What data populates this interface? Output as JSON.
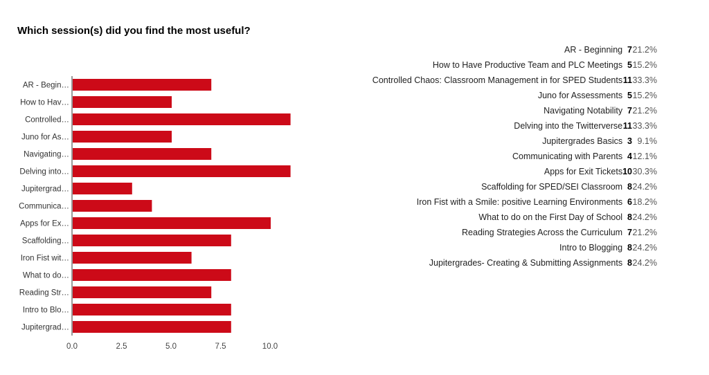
{
  "title": "Which session(s) did you find the most useful?",
  "colors": {
    "bar": "#cc0a18",
    "axis": "#333333",
    "text": "#222222"
  },
  "chart_data": {
    "type": "bar",
    "orientation": "horizontal",
    "title": "Which session(s) did you find the most useful?",
    "categories": [
      "AR - Begin…",
      "How to Hav…",
      "Controlled…",
      "Juno for As…",
      "Navigating…",
      "Delving into…",
      "Jupitergrad…",
      "Communica…",
      "Apps for Ex…",
      "Scaffolding…",
      "Iron Fist wit…",
      "What to do…",
      "Reading Str…",
      "Intro to Blo…",
      "Jupitergrad…"
    ],
    "values": [
      7,
      5,
      11,
      5,
      7,
      11,
      3,
      4,
      10,
      8,
      6,
      8,
      7,
      8,
      8
    ],
    "xlim": [
      0,
      12
    ],
    "x_ticks": [
      "0.0",
      "2.5",
      "5.0",
      "7.5",
      "10.0"
    ],
    "x_tick_values": [
      0,
      2.5,
      5,
      7.5,
      10
    ],
    "grid": false,
    "legend": "none"
  },
  "summary": [
    {
      "name": "AR - Beginning",
      "count": "7",
      "percent": "21.2%"
    },
    {
      "name": "How to Have Productive Team and PLC Meetings",
      "count": "5",
      "percent": "15.2%"
    },
    {
      "name": "Controlled Chaos:  Classroom Management in for SPED Students",
      "count": "11",
      "percent": "33.3%"
    },
    {
      "name": "Juno for Assessments",
      "count": "5",
      "percent": "15.2%"
    },
    {
      "name": "Navigating Notability",
      "count": "7",
      "percent": "21.2%"
    },
    {
      "name": "Delving into the Twitterverse",
      "count": "11",
      "percent": "33.3%"
    },
    {
      "name": "Jupitergrades Basics",
      "count": "3",
      "percent": "9.1%"
    },
    {
      "name": "Communicating with Parents",
      "count": "4",
      "percent": "12.1%"
    },
    {
      "name": "Apps for Exit Tickets",
      "count": "10",
      "percent": "30.3%"
    },
    {
      "name": "Scaffolding for SPED/SEI Classroom",
      "count": "8",
      "percent": "24.2%"
    },
    {
      "name": "Iron Fist with a Smile: positive Learning Environments",
      "count": "6",
      "percent": "18.2%"
    },
    {
      "name": "What to do on the First Day of School",
      "count": "8",
      "percent": "24.2%"
    },
    {
      "name": "Reading Strategies Across the Curriculum",
      "count": "7",
      "percent": "21.2%"
    },
    {
      "name": "Intro to Blogging",
      "count": "8",
      "percent": "24.2%"
    },
    {
      "name": "Jupitergrades- Creating & Submitting Assignments",
      "count": "8",
      "percent": "24.2%"
    }
  ]
}
